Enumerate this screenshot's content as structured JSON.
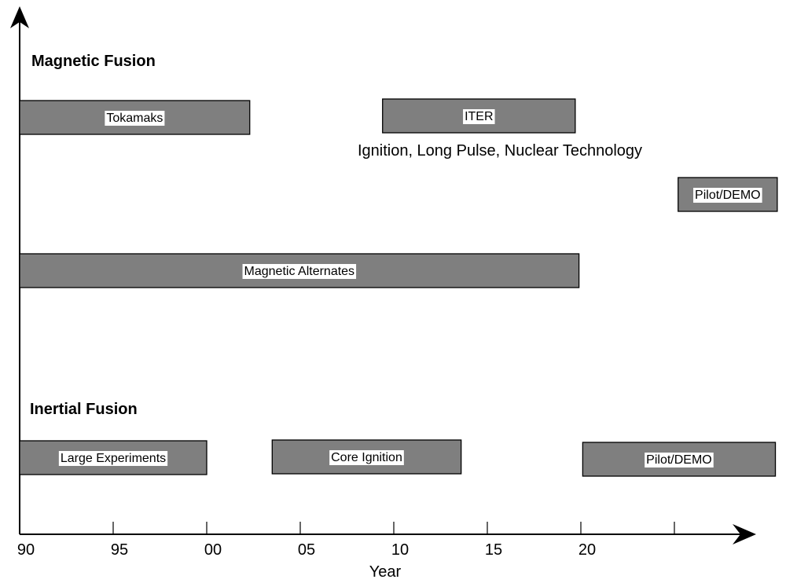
{
  "chart_data": {
    "type": "gantt",
    "xlabel": "Year",
    "xlim": [
      1990,
      2030
    ],
    "x_ticks": [
      {
        "value": 1990,
        "label": "90"
      },
      {
        "value": 1995,
        "label": "95"
      },
      {
        "value": 2000,
        "label": "00"
      },
      {
        "value": 2005,
        "label": "05"
      },
      {
        "value": 2010,
        "label": "10"
      },
      {
        "value": 2015,
        "label": "15"
      },
      {
        "value": 2020,
        "label": "20"
      },
      {
        "value": 2025,
        "label": ""
      }
    ],
    "sections": [
      {
        "title": "Magnetic Fusion",
        "bars": [
          {
            "label": "Tokamaks",
            "start": 1990,
            "end": 2002.3
          },
          {
            "label": "ITER",
            "start": 2009.4,
            "end": 2019.7,
            "annotation": "Ignition, Long Pulse, Nuclear Technology"
          },
          {
            "label": "Pilot/DEMO",
            "start": 2025.2,
            "end": 2030.5
          },
          {
            "label": "Magnetic Alternates",
            "start": 1990,
            "end": 2019.9
          }
        ]
      },
      {
        "title": "Inertial Fusion",
        "bars": [
          {
            "label": "Large  Experiments",
            "start": 1990,
            "end": 2000
          },
          {
            "label": "Core Ignition",
            "start": 2003.5,
            "end": 2013.6
          },
          {
            "label": "Pilot/DEMO",
            "start": 2020.1,
            "end": 2030.4
          }
        ]
      }
    ],
    "colors": {
      "bar_fill": "#7f7f7f",
      "bar_stroke": "#000000",
      "label_bg": "#ffffff"
    }
  }
}
